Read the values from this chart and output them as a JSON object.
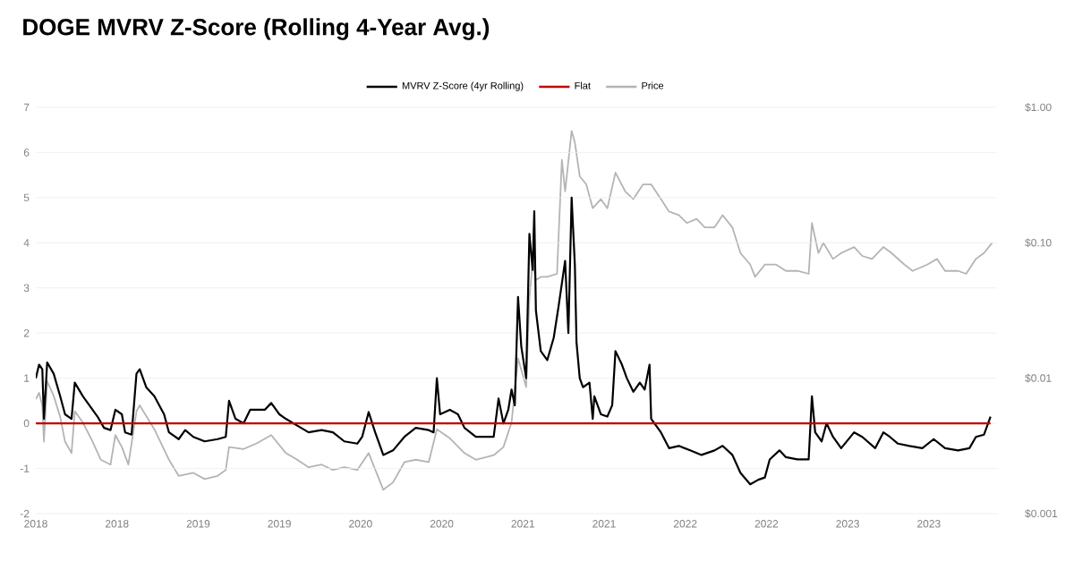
{
  "chart_data": {
    "type": "line",
    "title": "DOGE MVRV Z-Score (Rolling 4-Year Avg.)",
    "series": [
      {
        "name": "MVRV Z-Score (4yr Rolling)",
        "color": "#000000",
        "x": [
          2018.0,
          2018.02,
          2018.04,
          2018.05,
          2018.07,
          2018.11,
          2018.15,
          2018.18,
          2018.22,
          2018.24,
          2018.29,
          2018.35,
          2018.38,
          2018.42,
          2018.46,
          2018.49,
          2018.53,
          2018.55,
          2018.59,
          2018.62,
          2018.64,
          2018.68,
          2018.73,
          2018.79,
          2018.82,
          2018.88,
          2018.92,
          2018.97,
          2019.04,
          2019.12,
          2019.17,
          2019.19,
          2019.23,
          2019.28,
          2019.32,
          2019.36,
          2019.41,
          2019.45,
          2019.5,
          2019.54,
          2019.61,
          2019.68,
          2019.76,
          2019.83,
          2019.9,
          2019.98,
          2020.01,
          2020.05,
          2020.09,
          2020.14,
          2020.2,
          2020.27,
          2020.34,
          2020.42,
          2020.45,
          2020.47,
          2020.49,
          2020.55,
          2020.6,
          2020.64,
          2020.71,
          2020.82,
          2020.85,
          2020.88,
          2020.91,
          2020.93,
          2020.95,
          2020.97,
          2020.99,
          2021.02,
          2021.04,
          2021.06,
          2021.07,
          2021.08,
          2021.11,
          2021.15,
          2021.19,
          2021.22,
          2021.26,
          2021.28,
          2021.3,
          2021.32,
          2021.33,
          2021.35,
          2021.37,
          2021.41,
          2021.43,
          2021.44,
          2021.48,
          2021.52,
          2021.55,
          2021.57,
          2021.61,
          2021.64,
          2021.68,
          2021.72,
          2021.75,
          2021.78,
          2021.79,
          2021.85,
          2021.9,
          2021.96,
          2022.03,
          2022.1,
          2022.18,
          2022.23,
          2022.29,
          2022.34,
          2022.4,
          2022.45,
          2022.49,
          2022.52,
          2022.58,
          2022.62,
          2022.69,
          2022.76,
          2022.78,
          2022.8,
          2022.84,
          2022.87,
          2022.91,
          2022.96,
          2023.04,
          2023.09,
          2023.17,
          2023.22,
          2023.26,
          2023.31,
          2023.38,
          2023.46,
          2023.53,
          2023.6,
          2023.68,
          2023.75,
          2023.79,
          2023.84,
          2023.88
        ],
        "values": [
          1.0,
          1.3,
          1.2,
          0.1,
          1.35,
          1.1,
          0.6,
          0.2,
          0.1,
          0.9,
          0.6,
          0.3,
          0.15,
          -0.1,
          -0.15,
          0.3,
          0.2,
          -0.2,
          -0.25,
          1.1,
          1.2,
          0.8,
          0.6,
          0.2,
          -0.2,
          -0.35,
          -0.15,
          -0.3,
          -0.4,
          -0.35,
          -0.3,
          0.5,
          0.1,
          0.0,
          0.3,
          0.3,
          0.3,
          0.45,
          0.2,
          0.1,
          -0.05,
          -0.2,
          -0.15,
          -0.2,
          -0.4,
          -0.45,
          -0.3,
          0.25,
          -0.2,
          -0.7,
          -0.6,
          -0.3,
          -0.1,
          -0.15,
          -0.2,
          1.0,
          0.2,
          0.3,
          0.2,
          -0.1,
          -0.3,
          -0.3,
          0.55,
          0.0,
          0.3,
          0.75,
          0.4,
          2.8,
          1.7,
          1.0,
          4.2,
          3.4,
          4.7,
          2.5,
          1.6,
          1.4,
          1.9,
          2.6,
          3.6,
          2.0,
          5.0,
          3.5,
          1.8,
          1.0,
          0.8,
          0.9,
          0.1,
          0.6,
          0.2,
          0.15,
          0.4,
          1.6,
          1.3,
          1.0,
          0.7,
          0.9,
          0.75,
          1.3,
          0.1,
          -0.2,
          -0.55,
          -0.5,
          -0.6,
          -0.7,
          -0.6,
          -0.5,
          -0.7,
          -1.1,
          -1.35,
          -1.25,
          -1.2,
          -0.8,
          -0.6,
          -0.75,
          -0.8,
          -0.8,
          0.6,
          -0.2,
          -0.4,
          0.0,
          -0.3,
          -0.55,
          -0.2,
          -0.3,
          -0.55,
          -0.2,
          -0.3,
          -0.45,
          -0.5,
          -0.55,
          -0.35,
          -0.55,
          -0.6,
          -0.55,
          -0.3,
          -0.25,
          0.15
        ]
      },
      {
        "name": "Flat",
        "color": "#c00000",
        "x": [
          2018.0,
          2023.88
        ],
        "values": [
          0,
          0
        ]
      },
      {
        "name": "Price",
        "color": "#b4b4b4",
        "axis": "y2",
        "x": [
          2018.0,
          2018.02,
          2018.04,
          2018.05,
          2018.07,
          2018.11,
          2018.15,
          2018.18,
          2018.22,
          2018.24,
          2018.29,
          2018.35,
          2018.4,
          2018.46,
          2018.49,
          2018.53,
          2018.57,
          2018.62,
          2018.64,
          2018.73,
          2018.82,
          2018.88,
          2018.97,
          2019.04,
          2019.12,
          2019.17,
          2019.19,
          2019.28,
          2019.36,
          2019.45,
          2019.54,
          2019.61,
          2019.68,
          2019.76,
          2019.83,
          2019.9,
          2019.98,
          2020.05,
          2020.14,
          2020.2,
          2020.27,
          2020.34,
          2020.42,
          2020.47,
          2020.55,
          2020.64,
          2020.71,
          2020.82,
          2020.88,
          2020.93,
          2020.97,
          2021.02,
          2021.04,
          2021.06,
          2021.08,
          2021.11,
          2021.15,
          2021.21,
          2021.24,
          2021.26,
          2021.3,
          2021.32,
          2021.35,
          2021.39,
          2021.43,
          2021.48,
          2021.52,
          2021.57,
          2021.63,
          2021.68,
          2021.74,
          2021.79,
          2021.85,
          2021.9,
          2021.96,
          2022.01,
          2022.07,
          2022.12,
          2022.18,
          2022.23,
          2022.29,
          2022.34,
          2022.4,
          2022.43,
          2022.49,
          2022.56,
          2022.62,
          2022.69,
          2022.76,
          2022.78,
          2022.82,
          2022.85,
          2022.91,
          2022.96,
          2023.04,
          2023.09,
          2023.15,
          2023.22,
          2023.27,
          2023.35,
          2023.4,
          2023.49,
          2023.55,
          2023.6,
          2023.68,
          2023.73,
          2023.79,
          2023.84,
          2023.89
        ],
        "values": [
          0.007,
          0.0078,
          0.0063,
          0.0034,
          0.0095,
          0.0074,
          0.0052,
          0.0034,
          0.0028,
          0.0057,
          0.0047,
          0.0034,
          0.0025,
          0.0023,
          0.0038,
          0.0031,
          0.0023,
          0.0057,
          0.0063,
          0.0042,
          0.0025,
          0.0019,
          0.002,
          0.0018,
          0.0019,
          0.0021,
          0.0031,
          0.003,
          0.0033,
          0.0038,
          0.0028,
          0.0025,
          0.0022,
          0.0023,
          0.0021,
          0.0022,
          0.0021,
          0.0028,
          0.0015,
          0.0017,
          0.0024,
          0.0025,
          0.0024,
          0.0042,
          0.0036,
          0.0028,
          0.0025,
          0.0027,
          0.0031,
          0.0047,
          0.014,
          0.0086,
          0.039,
          0.072,
          0.053,
          0.056,
          0.056,
          0.059,
          0.41,
          0.24,
          0.67,
          0.55,
          0.31,
          0.27,
          0.18,
          0.21,
          0.18,
          0.33,
          0.24,
          0.21,
          0.27,
          0.27,
          0.21,
          0.17,
          0.16,
          0.14,
          0.15,
          0.13,
          0.13,
          0.16,
          0.13,
          0.084,
          0.069,
          0.056,
          0.069,
          0.069,
          0.062,
          0.062,
          0.059,
          0.14,
          0.084,
          0.1,
          0.076,
          0.084,
          0.093,
          0.08,
          0.076,
          0.093,
          0.084,
          0.069,
          0.062,
          0.069,
          0.076,
          0.062,
          0.062,
          0.059,
          0.076,
          0.084,
          0.1
        ]
      }
    ],
    "xlim": [
      2018.0,
      2023.92
    ],
    "xticks": [
      {
        "value": 2018.0,
        "label": "2018"
      },
      {
        "value": 2018.5,
        "label": "2018"
      },
      {
        "value": 2019.0,
        "label": "2019"
      },
      {
        "value": 2019.5,
        "label": "2019"
      },
      {
        "value": 2020.0,
        "label": "2020"
      },
      {
        "value": 2020.5,
        "label": "2020"
      },
      {
        "value": 2021.0,
        "label": "2021"
      },
      {
        "value": 2021.5,
        "label": "2021"
      },
      {
        "value": 2022.0,
        "label": "2022"
      },
      {
        "value": 2022.5,
        "label": "2022"
      },
      {
        "value": 2023.0,
        "label": "2023"
      },
      {
        "value": 2023.5,
        "label": "2023"
      }
    ],
    "ylim": [
      -2,
      7
    ],
    "yticks": [
      -2,
      -1,
      0,
      1,
      2,
      3,
      4,
      5,
      6,
      7
    ],
    "y2lim": [
      0.001,
      1
    ],
    "y2ticks": [
      {
        "value": 0.001,
        "label": "$0.001"
      },
      {
        "value": 0.01,
        "label": "$0.01"
      },
      {
        "value": 0.1,
        "label": "$0.10"
      },
      {
        "value": 1,
        "label": "$1.00"
      }
    ],
    "log": "y2",
    "grid": "y",
    "legend": "top",
    "marker": "none",
    "line_style": "solid"
  }
}
